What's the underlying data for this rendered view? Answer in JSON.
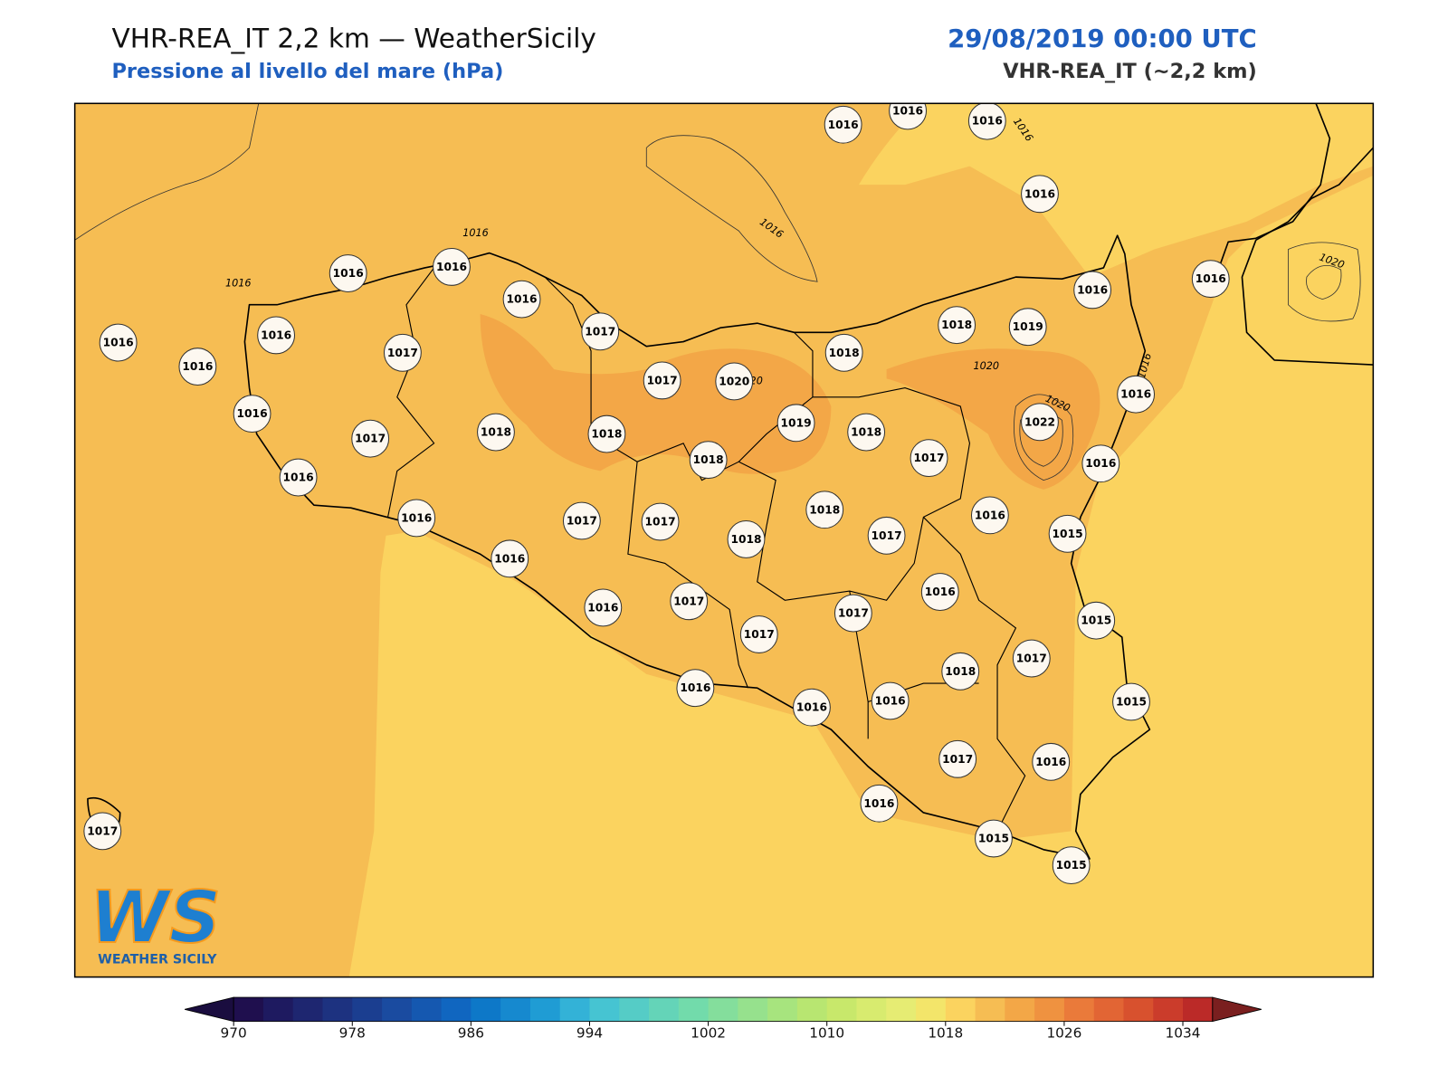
{
  "header": {
    "title": "VHR-REA_IT 2,2 km — WeatherSicily",
    "subtitle": "Pressione al livello del mare (hPa)",
    "date": "29/08/2019 00:00 UTC",
    "model": "VHR-REA_IT (~2,2 km)"
  },
  "stations": [
    1016,
    1016,
    1016,
    1016,
    1016,
    1016,
    1016,
    1016,
    1016,
    1016,
    1017,
    1017,
    1016,
    1017,
    1016,
    1018,
    1018,
    1017,
    1020,
    1019,
    1018,
    1018,
    1018,
    1018,
    1019,
    1016,
    1016,
    1016,
    1022,
    1017,
    1016,
    1016,
    1015,
    1018,
    1017,
    1018,
    1017,
    1017,
    1016,
    1016,
    1016,
    1017,
    1017,
    1017,
    1016,
    1015,
    1018,
    1017,
    1015,
    1016,
    1016,
    1016,
    1017,
    1016,
    1016,
    1015,
    1015,
    1017
  ],
  "contour_labels": [
    "1016",
    "1016",
    "1016",
    "1016",
    "1016",
    "1020",
    "1020",
    "1020",
    "1020"
  ],
  "colorbar": {
    "lim": [
      970,
      1036
    ],
    "ticks": [
      970,
      978,
      986,
      994,
      1002,
      1010,
      1018,
      1026,
      1034
    ],
    "colors": [
      "#1f0f4e",
      "#1e1a60",
      "#1e2670",
      "#1d3280",
      "#1b3e90",
      "#1a4ba0",
      "#1558b0",
      "#1066c0",
      "#0d78c8",
      "#1689cf",
      "#1f9cd4",
      "#33b2d7",
      "#46c4d2",
      "#55ccc6",
      "#64d4b8",
      "#72dbab",
      "#84de9c",
      "#96e18d",
      "#a7e47e",
      "#b8e671",
      "#c8e86b",
      "#d8eb6f",
      "#e6ec73",
      "#f3e56a",
      "#fbd35f",
      "#f6bd53",
      "#f3a747",
      "#ef9240",
      "#ea7a3a",
      "#e26534",
      "#d8512e",
      "#cb3c2b",
      "#bb2a28"
    ],
    "under_color": "#1a0d3f",
    "over_color": "#7a1f1f"
  },
  "logo": {
    "mark": "WS",
    "text": "WEATHER SICILY"
  }
}
